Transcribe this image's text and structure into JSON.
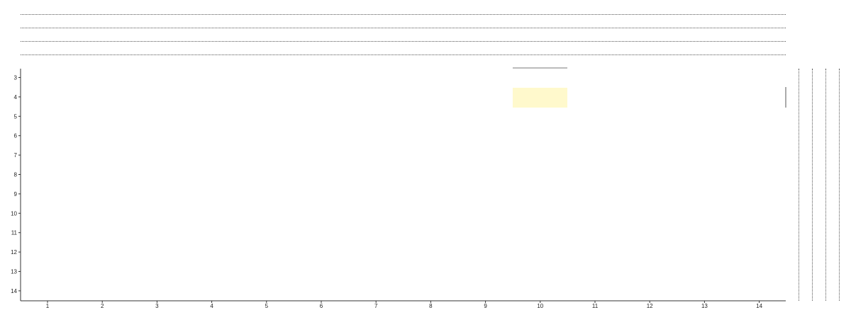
{
  "grid": {
    "x_ticks": [
      "1",
      "2",
      "3",
      "4",
      "5",
      "6",
      "7",
      "8",
      "9",
      "10",
      "11",
      "12",
      "13",
      "14"
    ],
    "y_ticks": [
      "3",
      "4",
      "5",
      "6",
      "7",
      "8",
      "9",
      "10",
      "11",
      "12",
      "13",
      "14"
    ]
  },
  "colors": {
    "highlight": "#fff9cc",
    "selection_line": "#bbbbbb",
    "axis": "#333333",
    "dotted_guides": "#555555"
  }
}
